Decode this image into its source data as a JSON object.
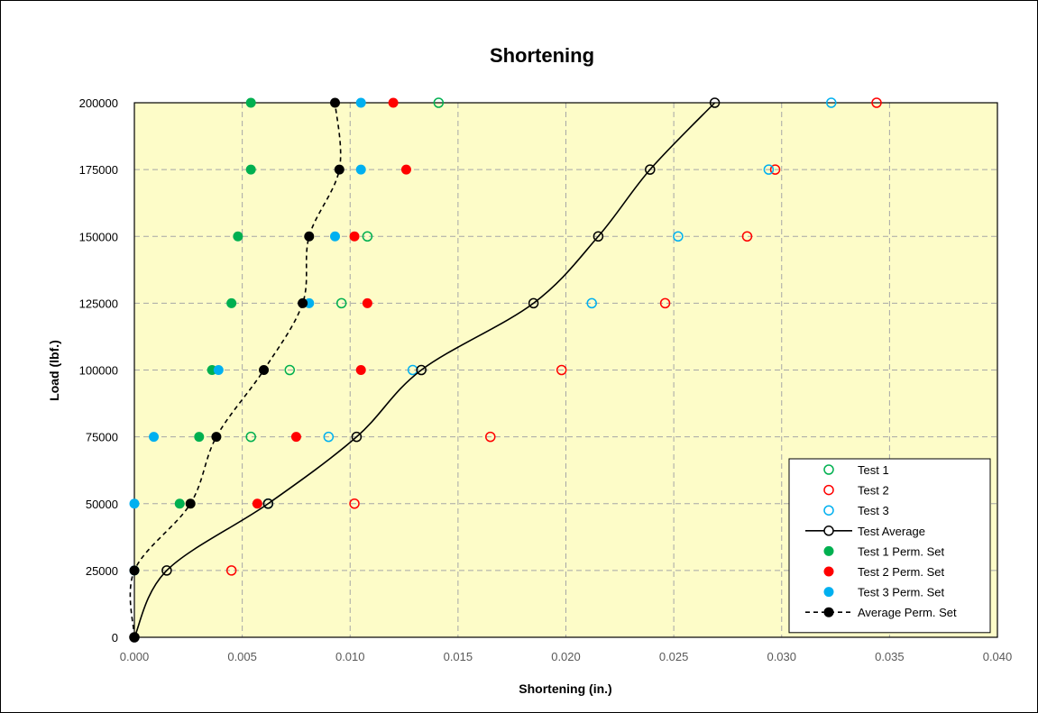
{
  "chart_data": {
    "type": "scatter",
    "title": "Shortening",
    "xlabel": "Shortening (in.)",
    "ylabel": "Load (lbf.)",
    "xlim": [
      0.0,
      0.04
    ],
    "ylim": [
      0,
      200000
    ],
    "x_ticks": [
      "0.000",
      "0.005",
      "0.010",
      "0.015",
      "0.020",
      "0.025",
      "0.030",
      "0.035",
      "0.040"
    ],
    "y_ticks": [
      "0",
      "25000",
      "50000",
      "75000",
      "100000",
      "125000",
      "150000",
      "175000",
      "200000"
    ],
    "grid": true,
    "legend_position": "bottom-right",
    "colors": {
      "plot_background": "#fdfcc8",
      "test1": "#00b050",
      "test2": "#ff0000",
      "test3": "#00b0f0",
      "average": "#000000",
      "grid": "#a6a6a6"
    },
    "series": [
      {
        "name": "Test 1",
        "marker": "open",
        "line": "none",
        "color": "#00b050",
        "x": [
          0.0054,
          0.0072,
          0.0096,
          0.0108,
          0.0141
        ],
        "y": [
          75000,
          100000,
          125000,
          150000,
          200000
        ]
      },
      {
        "name": "Test 2",
        "marker": "open",
        "line": "none",
        "color": "#ff0000",
        "x": [
          0.0045,
          0.0102,
          0.0165,
          0.0198,
          0.0246,
          0.0284,
          0.0297,
          0.0344
        ],
        "y": [
          25000,
          50000,
          75000,
          100000,
          125000,
          150000,
          175000,
          200000
        ]
      },
      {
        "name": "Test 3",
        "marker": "open",
        "line": "none",
        "color": "#00b0f0",
        "x": [
          0.0062,
          0.009,
          0.0129,
          0.0212,
          0.0252,
          0.0294,
          0.0323
        ],
        "y": [
          50000,
          75000,
          100000,
          125000,
          150000,
          175000,
          200000
        ]
      },
      {
        "name": "Test Average",
        "marker": "open",
        "line": "solid",
        "color": "#000000",
        "x": [
          0.0,
          0.0015,
          0.0062,
          0.0103,
          0.0133,
          0.0185,
          0.0215,
          0.0239,
          0.0269
        ],
        "y": [
          0,
          25000,
          50000,
          75000,
          100000,
          125000,
          150000,
          175000,
          200000
        ]
      },
      {
        "name": "Test 1 Perm. Set",
        "marker": "filled",
        "line": "none",
        "color": "#00b050",
        "x": [
          0.0021,
          0.003,
          0.0036,
          0.0045,
          0.0048,
          0.0054,
          0.0054
        ],
        "y": [
          50000,
          75000,
          100000,
          125000,
          150000,
          175000,
          200000
        ]
      },
      {
        "name": "Test 2 Perm. Set",
        "marker": "filled",
        "line": "none",
        "color": "#ff0000",
        "x": [
          0.0057,
          0.0075,
          0.0105,
          0.0108,
          0.0102,
          0.0126,
          0.012
        ],
        "y": [
          50000,
          75000,
          100000,
          125000,
          150000,
          175000,
          200000
        ]
      },
      {
        "name": "Test 3 Perm. Set",
        "marker": "filled",
        "line": "none",
        "color": "#00b0f0",
        "x": [
          0.0,
          0.0,
          0.0009,
          0.0039,
          0.0081,
          0.0093,
          0.0105,
          0.0105
        ],
        "y": [
          25000,
          50000,
          75000,
          100000,
          125000,
          150000,
          175000,
          200000
        ]
      },
      {
        "name": "Average Perm. Set",
        "marker": "filled",
        "line": "dashed",
        "color": "#000000",
        "x": [
          0.0,
          0.0,
          0.0026,
          0.0038,
          0.006,
          0.0078,
          0.0081,
          0.0095,
          0.0093
        ],
        "y": [
          0,
          25000,
          50000,
          75000,
          100000,
          125000,
          150000,
          175000,
          200000
        ]
      }
    ]
  }
}
